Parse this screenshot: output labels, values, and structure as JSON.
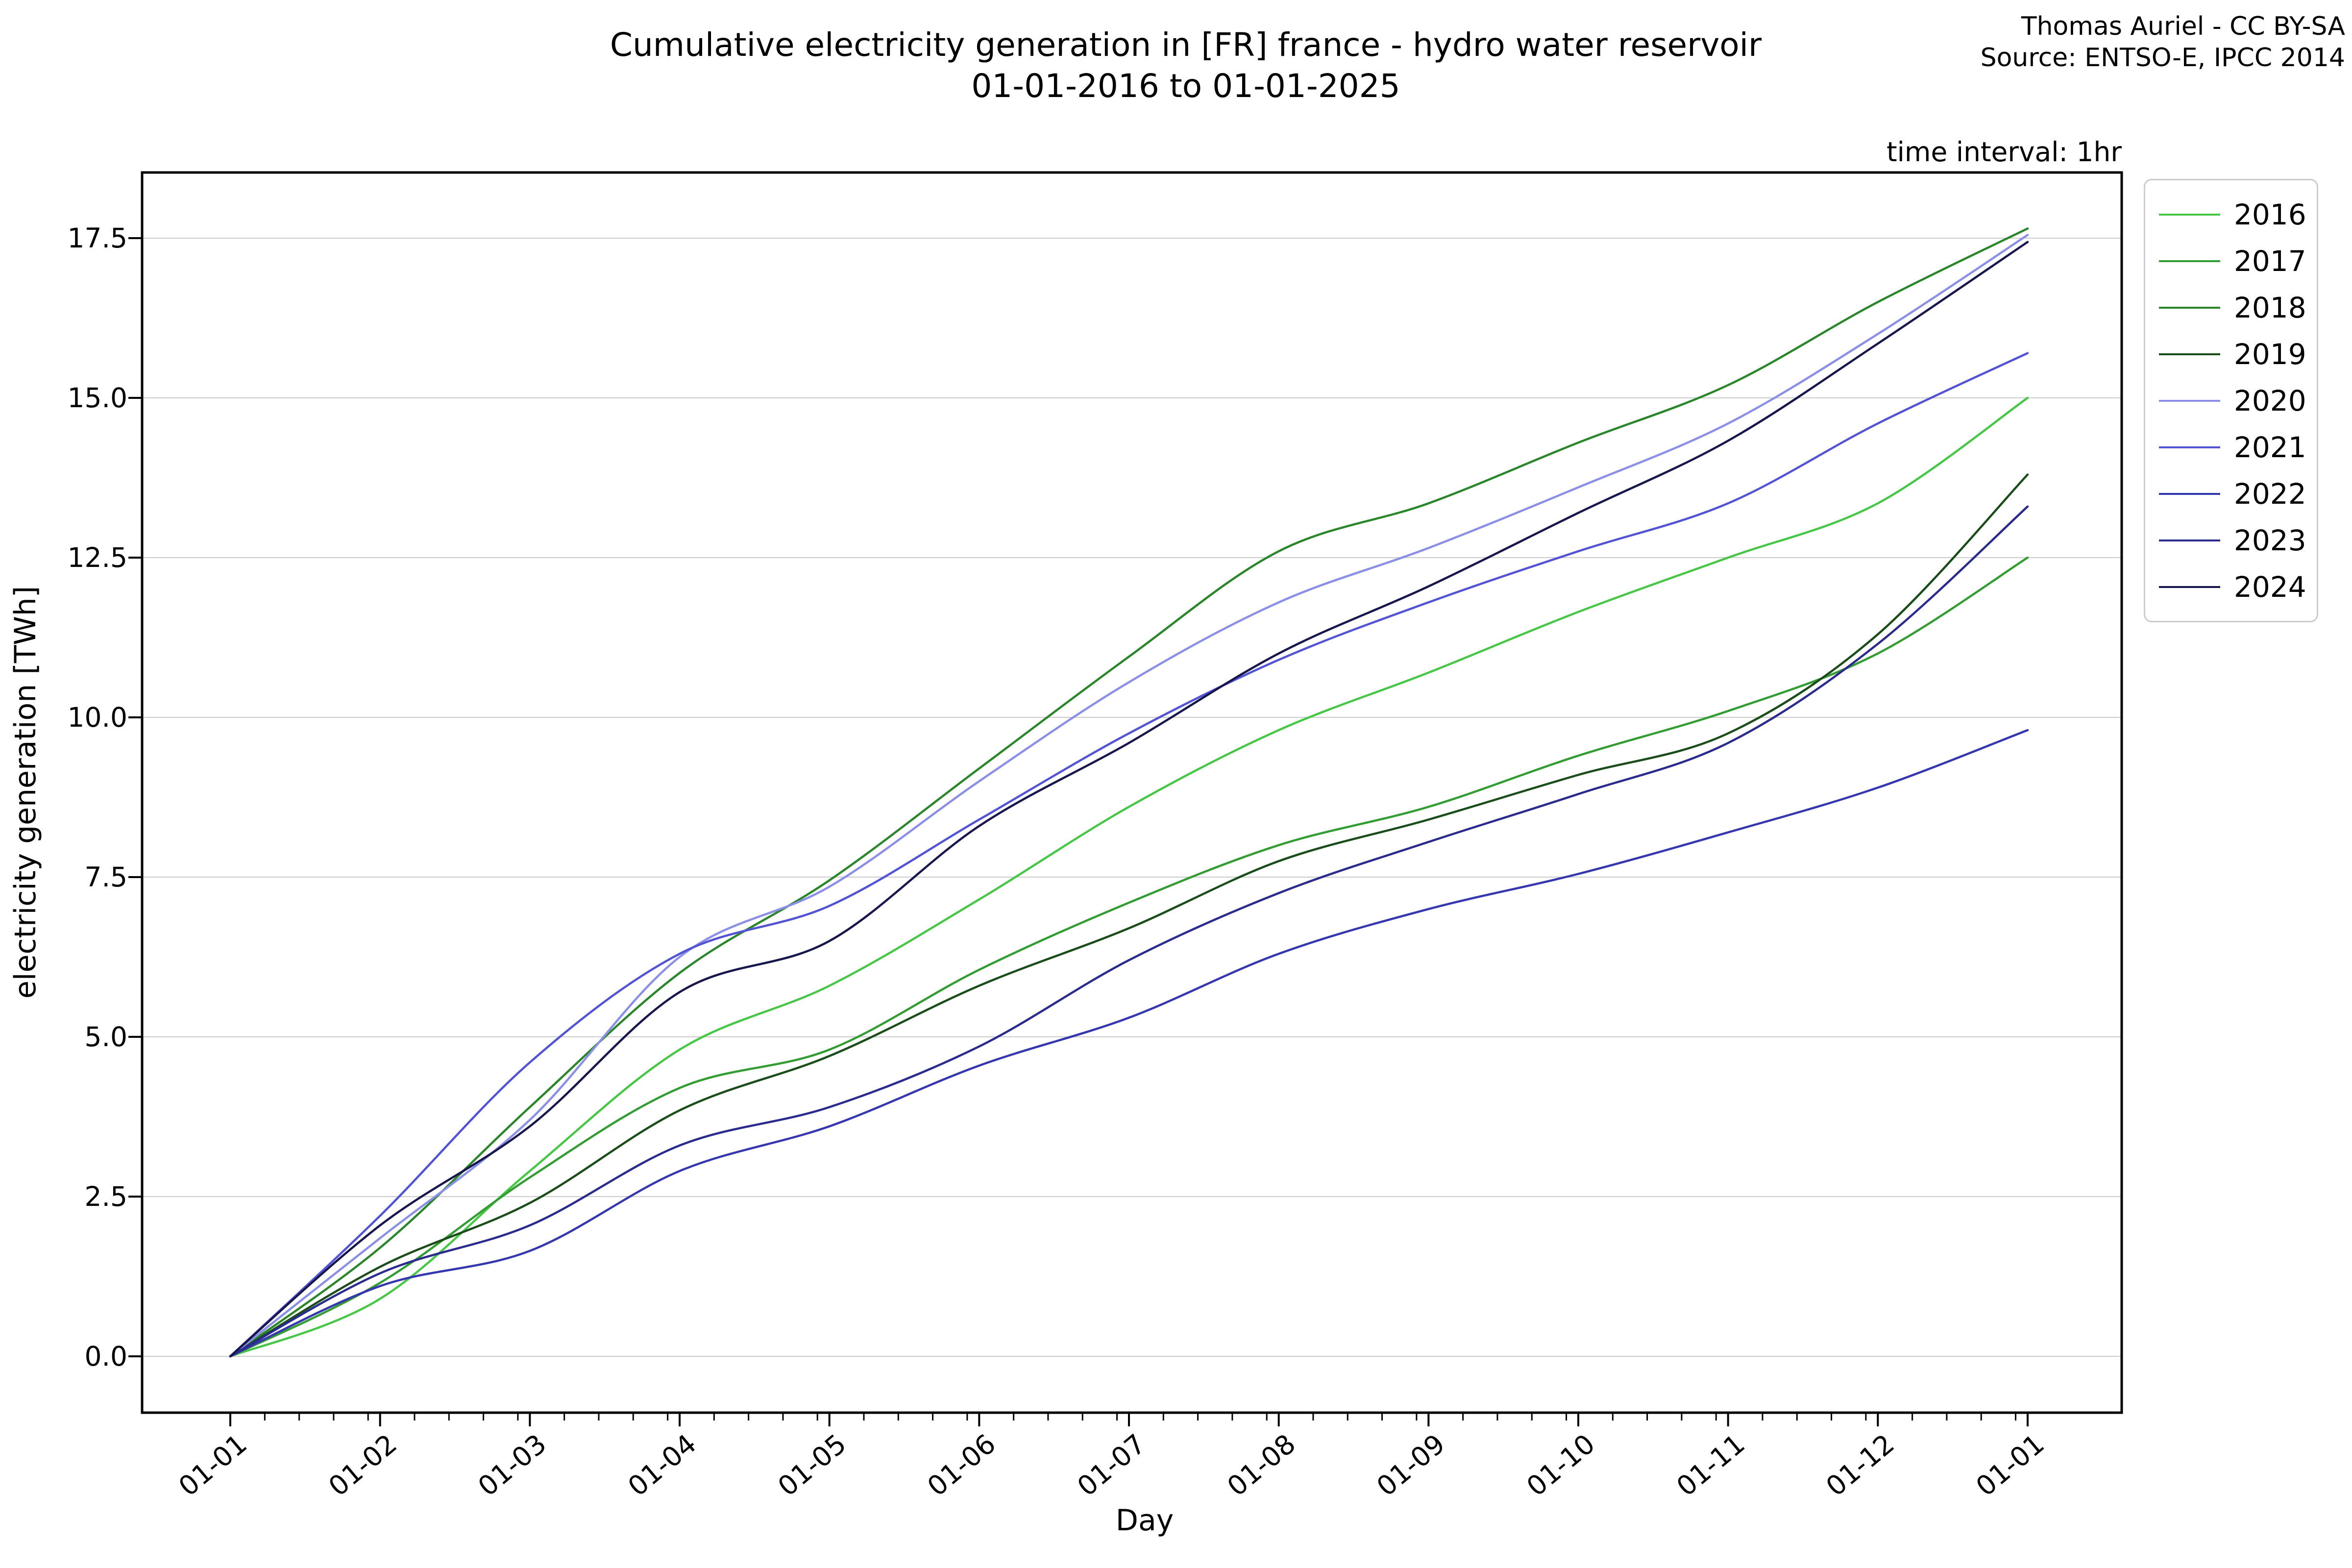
{
  "header": {
    "title_line1": "Cumulative electricity generation in [FR] france - hydro water reservoir",
    "title_line2": "01-01-2016 to 01-01-2025",
    "attribution_line1": "Thomas Auriel - CC BY-SA",
    "attribution_line2": "Source: ENTSO-E, IPCC 2014",
    "time_interval_note": "time interval: 1hr"
  },
  "chart_data": {
    "type": "line",
    "title": "Cumulative electricity generation in [FR] france - hydro water reservoir 01-01-2016 to 01-01-2025",
    "xlabel": "Day",
    "ylabel": "electricity generation [TWh]",
    "grid": true,
    "legend_position": "upper right outside",
    "x_ticklabels": [
      "01-01",
      "01-02",
      "01-03",
      "01-04",
      "01-05",
      "01-06",
      "01-07",
      "01-08",
      "01-09",
      "01-10",
      "01-11",
      "01-12",
      "01-01"
    ],
    "y_ticks": [
      0.0,
      2.5,
      5.0,
      7.5,
      10.0,
      12.5,
      15.0,
      17.5
    ],
    "ylim": [
      -0.9,
      18.5
    ],
    "x_months": [
      1,
      2,
      3,
      4,
      5,
      6,
      7,
      8,
      9,
      10,
      11,
      12,
      13
    ],
    "grid_color": "#cccccc",
    "series": [
      {
        "name": "2016",
        "color": "#47c647",
        "values": [
          0,
          0.9,
          2.9,
          4.8,
          5.8,
          7.15,
          8.6,
          9.8,
          10.7,
          11.65,
          12.5,
          13.35,
          15.0
        ]
      },
      {
        "name": "2017",
        "color": "#339c33",
        "values": [
          0,
          1.15,
          2.8,
          4.2,
          4.8,
          6.05,
          7.1,
          8.0,
          8.6,
          9.4,
          10.1,
          11.0,
          12.5
        ]
      },
      {
        "name": "2018",
        "color": "#2b862b",
        "values": [
          0,
          1.7,
          3.9,
          6.0,
          7.45,
          9.2,
          10.95,
          12.6,
          13.35,
          14.3,
          15.2,
          16.5,
          17.65
        ]
      },
      {
        "name": "2019",
        "color": "#1b4d1b",
        "values": [
          0,
          1.4,
          2.4,
          3.85,
          4.7,
          5.8,
          6.7,
          7.75,
          8.4,
          9.1,
          9.75,
          11.3,
          13.8
        ]
      },
      {
        "name": "2020",
        "color": "#8b8fe6",
        "values": [
          0,
          1.85,
          3.7,
          6.25,
          7.35,
          9.0,
          10.55,
          11.8,
          12.65,
          13.6,
          14.6,
          16.0,
          17.55
        ]
      },
      {
        "name": "2021",
        "color": "#5254d4",
        "values": [
          0,
          2.2,
          4.6,
          6.3,
          7.05,
          8.4,
          9.75,
          10.9,
          11.8,
          12.6,
          13.35,
          14.6,
          15.7
        ]
      },
      {
        "name": "2022",
        "color": "#3537ae",
        "values": [
          0,
          1.1,
          1.65,
          2.9,
          3.6,
          4.55,
          5.3,
          6.3,
          7.0,
          7.55,
          8.2,
          8.9,
          9.8
        ]
      },
      {
        "name": "2023",
        "color": "#2a2b8d",
        "values": [
          0,
          1.3,
          2.05,
          3.3,
          3.9,
          4.85,
          6.2,
          7.25,
          8.05,
          8.8,
          9.6,
          11.15,
          13.3
        ]
      },
      {
        "name": "2024",
        "color": "#17174d",
        "values": [
          0,
          2.05,
          3.6,
          5.7,
          6.5,
          8.3,
          9.6,
          11.0,
          12.05,
          13.2,
          14.33,
          15.85,
          17.44
        ]
      }
    ]
  }
}
